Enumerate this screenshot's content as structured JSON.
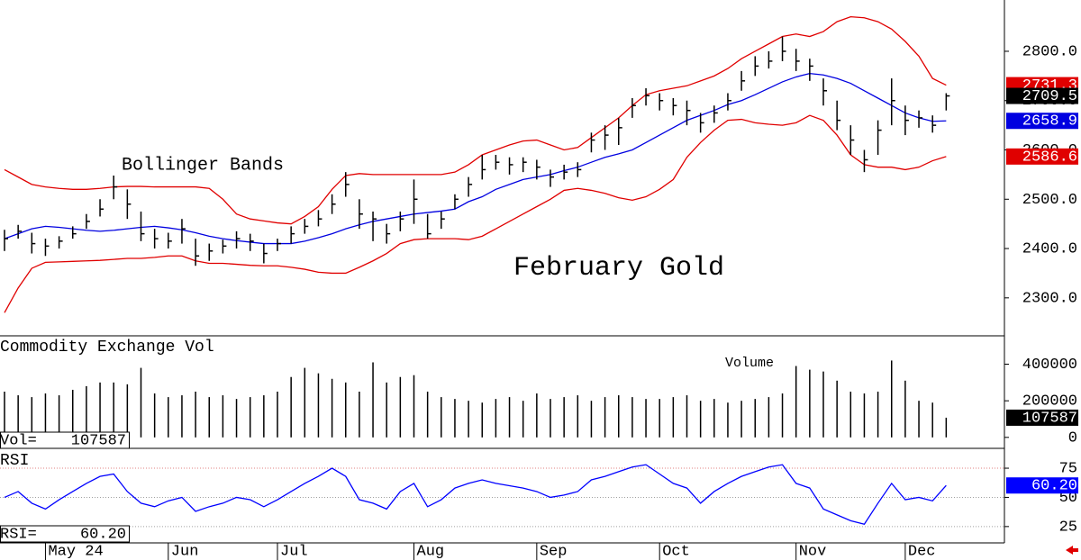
{
  "chart_data": [
    {
      "type": "ohlc",
      "title": "February Gold",
      "annotations": [
        "Bollinger Bands"
      ],
      "categories": [
        null,
        null,
        null,
        "May 24",
        null,
        null,
        null,
        null,
        null,
        null,
        null,
        null,
        "Jun",
        null,
        null,
        null,
        null,
        null,
        null,
        null,
        "Jul",
        null,
        null,
        null,
        null,
        null,
        null,
        null,
        null,
        null,
        "Aug",
        null,
        null,
        null,
        null,
        null,
        null,
        null,
        null,
        "Sep",
        null,
        null,
        null,
        null,
        null,
        null,
        null,
        null,
        "Oct",
        null,
        null,
        null,
        null,
        null,
        null,
        null,
        null,
        null,
        "Nov",
        null,
        null,
        null,
        null,
        null,
        null,
        null,
        "Dec",
        null,
        null,
        null
      ],
      "high": [
        2438,
        2448,
        2432,
        2420,
        2425,
        2445,
        2470,
        2500,
        2548,
        2520,
        2475,
        2440,
        2432,
        2460,
        2420,
        2410,
        2418,
        2435,
        2430,
        2410,
        2420,
        2445,
        2460,
        2478,
        2510,
        2555,
        2500,
        2475,
        2450,
        2475,
        2540,
        2470,
        2475,
        2510,
        2545,
        2590,
        2590,
        2585,
        2585,
        2580,
        2560,
        2570,
        2575,
        2635,
        2650,
        2665,
        2705,
        2725,
        2715,
        2705,
        2700,
        2675,
        2690,
        2715,
        2760,
        2790,
        2800,
        2830,
        2805,
        2785,
        2745,
        2700,
        2650,
        2600,
        2660,
        2745,
        2690,
        2680,
        2670,
        2715
      ],
      "low": [
        2395,
        2420,
        2390,
        2385,
        2400,
        2420,
        2440,
        2465,
        2500,
        2460,
        2415,
        2400,
        2400,
        2410,
        2365,
        2375,
        2390,
        2400,
        2395,
        2370,
        2395,
        2410,
        2430,
        2445,
        2470,
        2505,
        2440,
        2415,
        2410,
        2435,
        2450,
        2420,
        2440,
        2480,
        2505,
        2540,
        2560,
        2550,
        2555,
        2540,
        2525,
        2540,
        2545,
        2595,
        2600,
        2610,
        2665,
        2690,
        2680,
        2670,
        2650,
        2635,
        2655,
        2680,
        2720,
        2750,
        2765,
        2780,
        2760,
        2740,
        2690,
        2640,
        2590,
        2555,
        2590,
        2650,
        2630,
        2645,
        2635,
        2680
      ],
      "close": [
        2420,
        2435,
        2410,
        2405,
        2415,
        2430,
        2455,
        2480,
        2525,
        2490,
        2430,
        2420,
        2415,
        2440,
        2385,
        2395,
        2405,
        2420,
        2415,
        2390,
        2410,
        2430,
        2445,
        2460,
        2490,
        2530,
        2470,
        2460,
        2430,
        2460,
        2500,
        2430,
        2460,
        2500,
        2530,
        2560,
        2575,
        2570,
        2575,
        2565,
        2545,
        2555,
        2560,
        2620,
        2630,
        2645,
        2690,
        2710,
        2700,
        2690,
        2680,
        2655,
        2675,
        2700,
        2740,
        2770,
        2780,
        2800,
        2780,
        2770,
        2720,
        2660,
        2620,
        2580,
        2640,
        2700,
        2660,
        2665,
        2650,
        2709.5
      ],
      "color": "#000000",
      "close_label_color": "#000000",
      "bands": [
        {
          "color": "#e00000",
          "values": [
            2560,
            2545,
            2530,
            2525,
            2522,
            2520,
            2520,
            2522,
            2525,
            2526,
            2526,
            2525,
            2525,
            2525,
            2525,
            2522,
            2500,
            2470,
            2460,
            2456,
            2452,
            2450,
            2465,
            2485,
            2520,
            2548,
            2552,
            2550,
            2550,
            2550,
            2550,
            2550,
            2550,
            2555,
            2570,
            2590,
            2600,
            2610,
            2618,
            2620,
            2610,
            2600,
            2605,
            2625,
            2645,
            2665,
            2690,
            2712,
            2720,
            2725,
            2730,
            2740,
            2750,
            2765,
            2785,
            2800,
            2815,
            2830,
            2835,
            2830,
            2840,
            2860,
            2870,
            2868,
            2860,
            2845,
            2820,
            2790,
            2745,
            2731.3
          ]
        },
        {
          "color": "#0000e0",
          "values": [
            2420,
            2430,
            2440,
            2445,
            2443,
            2440,
            2437,
            2435,
            2437,
            2440,
            2443,
            2445,
            2442,
            2438,
            2432,
            2425,
            2420,
            2416,
            2413,
            2410,
            2410,
            2410,
            2415,
            2422,
            2430,
            2440,
            2448,
            2455,
            2460,
            2465,
            2470,
            2473,
            2476,
            2480,
            2495,
            2505,
            2520,
            2530,
            2540,
            2545,
            2550,
            2558,
            2565,
            2575,
            2585,
            2592,
            2600,
            2615,
            2630,
            2645,
            2660,
            2670,
            2680,
            2692,
            2700,
            2712,
            2725,
            2738,
            2748,
            2755,
            2752,
            2745,
            2735,
            2720,
            2705,
            2690,
            2675,
            2665,
            2658,
            2658.9
          ]
        },
        {
          "color": "#e00000",
          "values": [
            2270,
            2320,
            2360,
            2372,
            2373,
            2374,
            2375,
            2376,
            2378,
            2380,
            2380,
            2382,
            2385,
            2385,
            2375,
            2370,
            2370,
            2368,
            2366,
            2365,
            2365,
            2362,
            2358,
            2352,
            2350,
            2350,
            2362,
            2375,
            2390,
            2410,
            2418,
            2420,
            2420,
            2420,
            2418,
            2425,
            2440,
            2455,
            2470,
            2485,
            2500,
            2518,
            2522,
            2518,
            2512,
            2503,
            2498,
            2505,
            2520,
            2540,
            2585,
            2615,
            2640,
            2660,
            2662,
            2655,
            2652,
            2650,
            2655,
            2670,
            2660,
            2630,
            2590,
            2570,
            2565,
            2565,
            2560,
            2565,
            2578,
            2586.6
          ]
        }
      ],
      "ylim": [
        2223,
        2904
      ],
      "yticks": [
        {
          "value": 2300,
          "label": "2300.0"
        },
        {
          "value": 2400,
          "label": "2400.0"
        },
        {
          "value": 2500,
          "label": "2500.0"
        },
        {
          "value": 2600,
          "label": "2600.0"
        },
        {
          "value": 2700,
          "label": "2700.0"
        },
        {
          "value": 2800,
          "label": "2800.0"
        }
      ]
    },
    {
      "type": "bar",
      "title": "Commodity Exchange Vol",
      "annotations": [
        "Volume"
      ],
      "readout": "Vol=",
      "values": [
        250000,
        230000,
        220000,
        240000,
        230000,
        260000,
        280000,
        300000,
        300000,
        290000,
        380000,
        240000,
        220000,
        230000,
        250000,
        220000,
        230000,
        210000,
        220000,
        230000,
        250000,
        330000,
        380000,
        350000,
        320000,
        300000,
        250000,
        410000,
        300000,
        330000,
        340000,
        250000,
        220000,
        210000,
        200000,
        190000,
        210000,
        220000,
        200000,
        240000,
        210000,
        220000,
        230000,
        200000,
        220000,
        230000,
        220000,
        210000,
        210000,
        220000,
        230000,
        200000,
        210000,
        190000,
        200000,
        210000,
        220000,
        240000,
        390000,
        370000,
        360000,
        310000,
        250000,
        240000,
        250000,
        420000,
        310000,
        200000,
        190000,
        107587
      ],
      "color": "#000000",
      "ylim": [
        -60000,
        555000
      ],
      "yticks": [
        0,
        200000,
        400000
      ]
    },
    {
      "type": "line",
      "title": "RSI",
      "readout": "RSI=",
      "last_label": "60.20",
      "values": [
        50,
        55,
        45,
        40,
        48,
        55,
        62,
        68,
        70,
        55,
        45,
        42,
        47,
        50,
        38,
        42,
        45,
        50,
        48,
        42,
        48,
        55,
        62,
        68,
        75,
        68,
        48,
        45,
        40,
        55,
        62,
        42,
        48,
        58,
        62,
        65,
        62,
        60,
        58,
        55,
        50,
        52,
        55,
        65,
        68,
        72,
        76,
        78,
        70,
        62,
        58,
        45,
        55,
        62,
        68,
        72,
        76,
        78,
        62,
        58,
        40,
        35,
        30,
        27,
        45,
        62,
        48,
        50,
        47,
        60.2
      ],
      "color": "#0000ff",
      "ylim": [
        11,
        92
      ],
      "yticks": [
        25,
        50,
        75
      ],
      "grid": true,
      "grid_colors": [
        "#a0a0a0",
        "#a0a0a0",
        "#e08080"
      ]
    }
  ]
}
